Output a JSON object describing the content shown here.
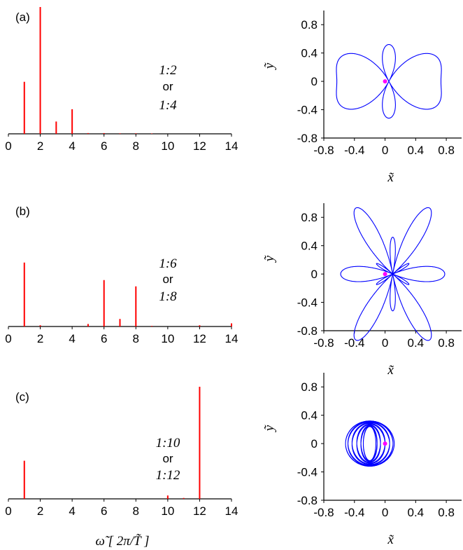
{
  "colors": {
    "spectrum": "#ff0000",
    "orbit": "#0000ff",
    "marker": "#ff00ff",
    "axis": "#000000"
  },
  "spectrum_axis": {
    "xlim": [
      0,
      14
    ],
    "ticks": [
      "0",
      "2",
      "4",
      "6",
      "8",
      "10",
      "12",
      "14"
    ]
  },
  "orbit_axis": {
    "lim": [
      -0.8,
      1.0
    ],
    "xticks": [
      "-0.8",
      "-0.4",
      "0",
      "0.4",
      "0.8"
    ],
    "yticks": [
      "0.8",
      "0.4",
      "0",
      "-0.4",
      "-0.8"
    ]
  },
  "labels": {
    "xlabel": "ω̃   [ 2π/T̃ ]",
    "orbit_x": "x̃",
    "orbit_y": "ỹ"
  },
  "chart_data": [
    {
      "type": "bar",
      "panel": "(a)",
      "annotation": {
        "line1": "1:2",
        "line2": "or",
        "line3": "1:4"
      },
      "x": [
        1,
        2,
        3,
        4,
        5,
        6,
        7,
        8,
        9
      ],
      "values": [
        0.41,
        1.0,
        0.097,
        0.194,
        0.006,
        0.006,
        0.004,
        0.004,
        0.003
      ],
      "ylim": [
        0,
        1.0
      ]
    },
    {
      "type": "line",
      "panel": "(a)",
      "series": "orbit",
      "orbit": {
        "r0": 0.3,
        "a1": -0.23,
        "a2": 1.0,
        "a3": 0.15,
        "a4": -0.22,
        "omega": 2,
        "x_offset": 0.05,
        "turns": 1
      }
    },
    {
      "type": "bar",
      "panel": "(b)",
      "annotation": {
        "line1": "1:6",
        "line2": "or",
        "line3": "1:8"
      },
      "x": [
        1,
        2,
        5,
        6,
        7,
        8,
        9,
        12,
        14
      ],
      "values": [
        0.51,
        0.01,
        0.02,
        0.37,
        0.06,
        0.32,
        0.005,
        0.01,
        0.025
      ],
      "ylim": [
        0,
        1.0
      ]
    },
    {
      "type": "line",
      "panel": "(b)",
      "series": "orbit",
      "orbit": {
        "r0": 0.3,
        "a1": -0.23,
        "a2": 0.0,
        "a3": 0.0,
        "a4": 0.0,
        "a6": 0.6,
        "a8": -0.22,
        "omega": 6,
        "x_offset": 0.1,
        "turns": 1
      }
    },
    {
      "type": "bar",
      "panel": "(c)",
      "annotation": {
        "line1": "1:10",
        "line2": "or",
        "line3": "1:12"
      },
      "x": [
        1,
        10,
        11,
        12
      ],
      "values": [
        0.34,
        0.03,
        0.008,
        1.0
      ],
      "ylim": [
        0,
        1.0
      ]
    },
    {
      "type": "line",
      "panel": "(c)",
      "series": "orbit",
      "orbit": {
        "cx": -0.2,
        "R": 0.32,
        "r0": 0.18,
        "omega": 12,
        "turns": 12
      }
    }
  ]
}
